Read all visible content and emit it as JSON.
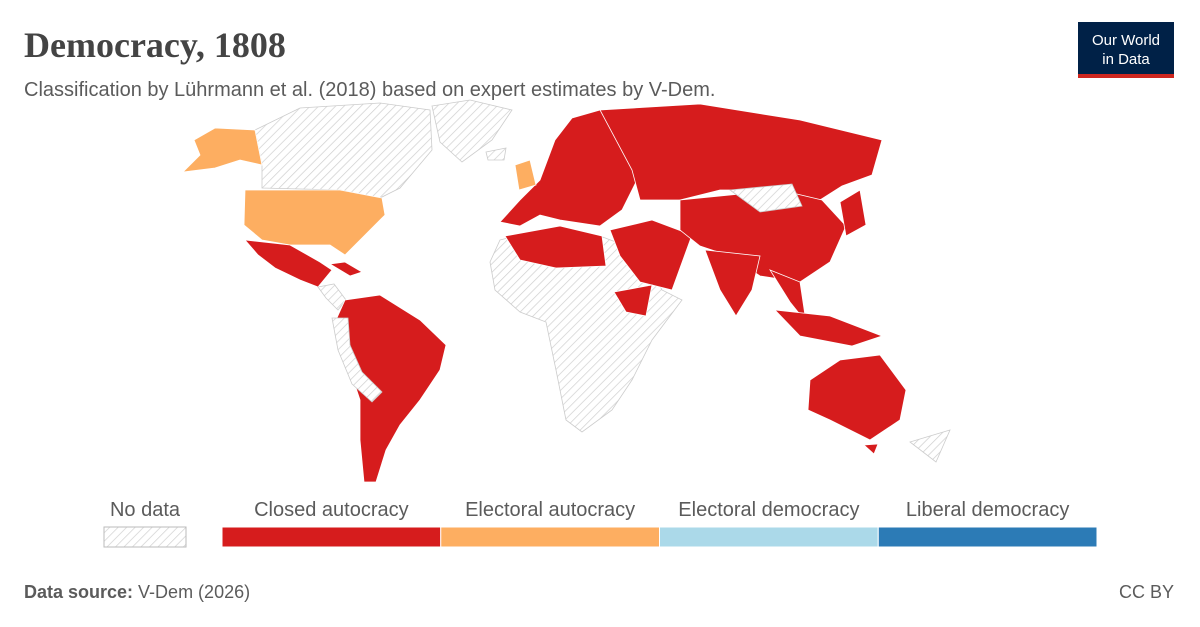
{
  "header": {
    "title": "Democracy, 1808",
    "subtitle": "Classification by Lührmann et al. (2018) based on expert estimates by V-Dem.",
    "logo": [
      "Our World",
      "in Data"
    ]
  },
  "legend": {
    "no_data": "No data",
    "categories": [
      {
        "label": "Closed autocracy",
        "color": "#d61c1d"
      },
      {
        "label": "Electoral autocracy",
        "color": "#fdae61"
      },
      {
        "label": "Electoral democracy",
        "color": "#abd9e9"
      },
      {
        "label": "Liberal democracy",
        "color": "#2c7bb6"
      }
    ]
  },
  "footer": {
    "source_label": "Data source:",
    "source": "V-Dem (2026)",
    "license": "CC BY"
  }
}
